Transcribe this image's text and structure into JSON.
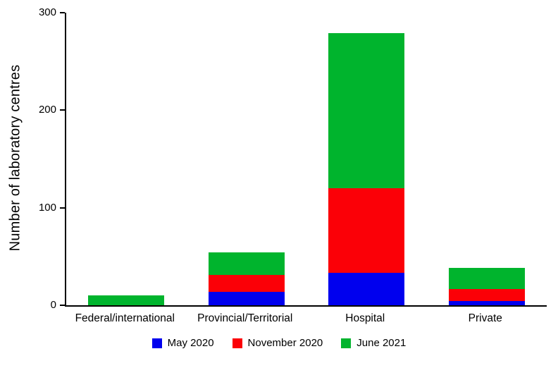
{
  "chart_data": {
    "type": "bar",
    "stacked": true,
    "title": "",
    "xlabel": "",
    "ylabel": "Number of laboratory centres",
    "ylim": [
      0,
      300
    ],
    "yticks": [
      0,
      100,
      200,
      300
    ],
    "grid": false,
    "legend_position": "bottom",
    "categories": [
      "Federal/international",
      "Provincial/Territorial",
      "Hospital",
      "Private"
    ],
    "series": [
      {
        "name": "May 2020",
        "color": "#0000ee",
        "values": [
          0,
          14,
          33,
          4
        ]
      },
      {
        "name": "November 2020",
        "color": "#fb0007",
        "values": [
          0,
          17,
          87,
          13
        ]
      },
      {
        "name": "June 2021",
        "color": "#00b42d",
        "values": [
          10,
          23,
          159,
          21
        ]
      }
    ]
  }
}
